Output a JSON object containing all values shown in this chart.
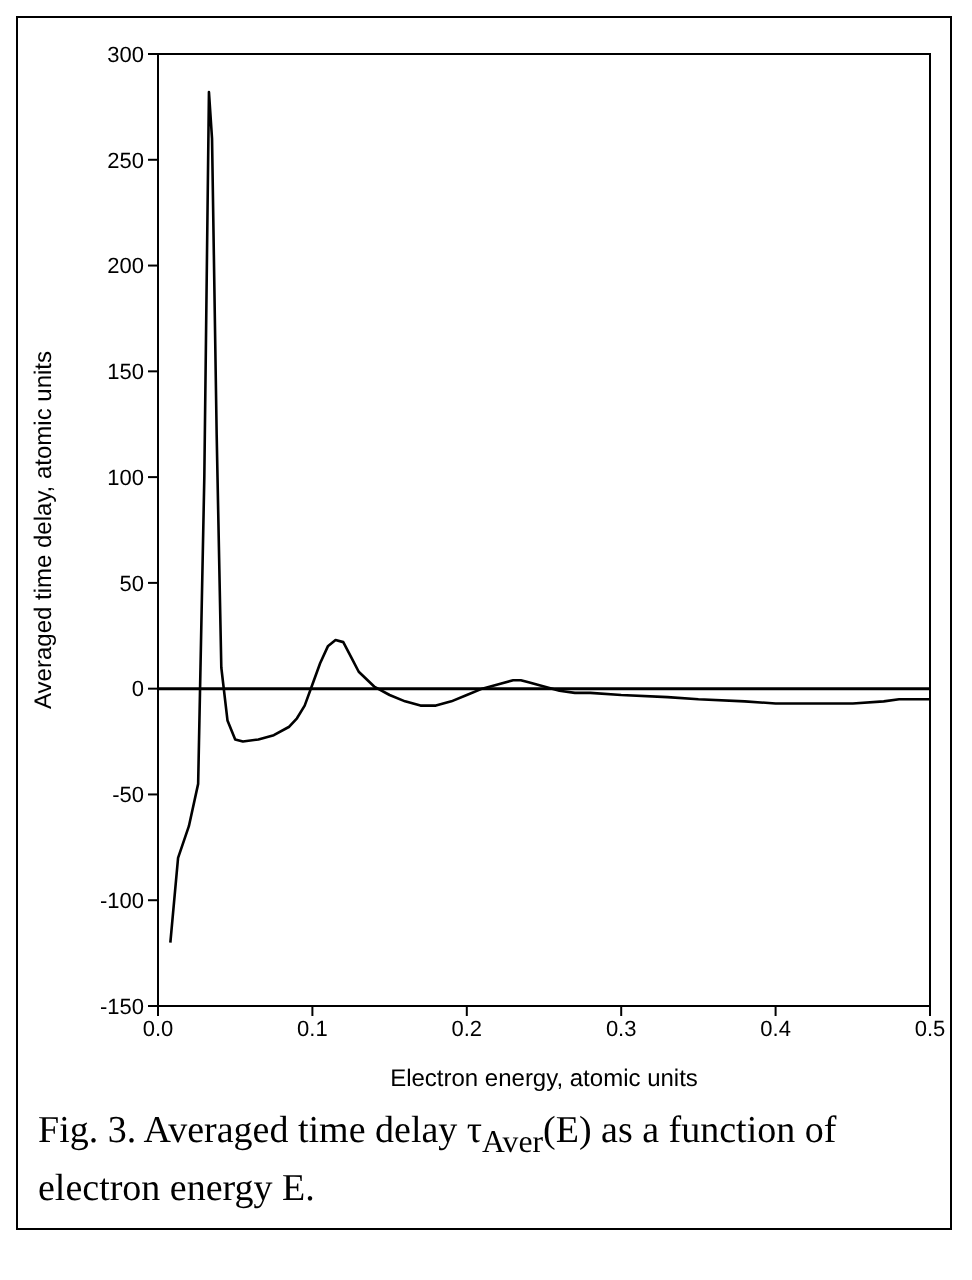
{
  "chart_data": {
    "type": "line",
    "xlabel": "Electron energy, atomic units",
    "ylabel": "Averaged time delay, atomic units",
    "annotations": [
      "Fig. 3. Averaged time delay τ$_{Aver}$(E) as a function of electron energy E."
    ],
    "x": [
      0.008,
      0.013,
      0.02,
      0.026,
      0.03,
      0.033,
      0.035,
      0.038,
      0.041,
      0.045,
      0.05,
      0.055,
      0.065,
      0.075,
      0.085,
      0.09,
      0.095,
      0.1,
      0.105,
      0.11,
      0.115,
      0.12,
      0.125,
      0.13,
      0.14,
      0.15,
      0.16,
      0.17,
      0.18,
      0.19,
      0.2,
      0.21,
      0.22,
      0.23,
      0.235,
      0.24,
      0.25,
      0.26,
      0.27,
      0.28,
      0.3,
      0.33,
      0.35,
      0.38,
      0.4,
      0.43,
      0.45,
      0.47,
      0.48,
      0.5
    ],
    "series": [
      {
        "color": "#000000",
        "values": [
          -120,
          -80,
          -65,
          -45,
          100,
          282,
          260,
          120,
          10,
          -15,
          -24,
          -25,
          -24,
          -22,
          -18,
          -14,
          -8,
          2,
          12,
          20,
          23,
          22,
          15,
          8,
          1,
          -3,
          -6,
          -8,
          -8,
          -6,
          -3,
          0,
          2,
          4,
          4,
          3,
          1,
          -1,
          -2,
          -2,
          -3,
          -4,
          -5,
          -6,
          -7,
          -7,
          -7,
          -6,
          -5,
          -5
        ]
      }
    ],
    "xlim": [
      0,
      0.5
    ],
    "ylim": [
      -150,
      300
    ],
    "xticks": [
      {
        "value": 0,
        "label": "0.0"
      },
      0.1,
      0.2,
      0.3,
      0.4,
      0.5
    ],
    "yticks": [
      -150,
      -100,
      -50,
      0,
      50,
      100,
      150,
      200,
      250,
      300
    ],
    "ref_lines": [
      {
        "axis": "y",
        "value": 0,
        "color": "#000000"
      }
    ],
    "grid": false,
    "legend": false,
    "marker": "none",
    "line_style": "solid"
  }
}
